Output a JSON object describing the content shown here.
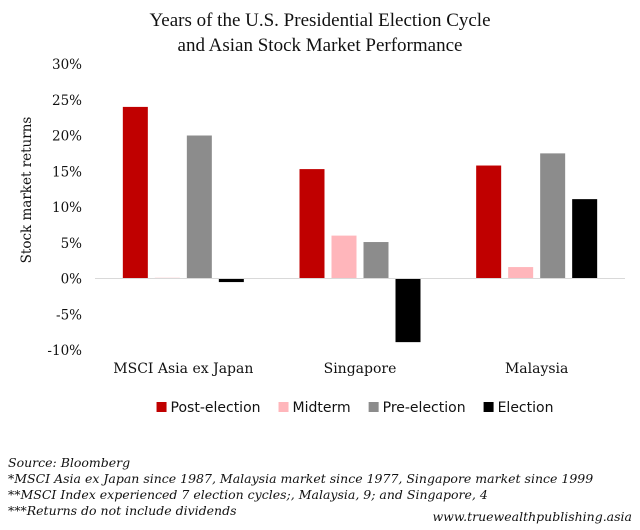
{
  "chart_data": {
    "type": "bar",
    "title": [
      "Years of the U.S. Presidential Election Cycle",
      "and Asian Stock Market Performance"
    ],
    "ylabel": "Stock market returns",
    "xlabel": "",
    "ylim": [
      -10,
      30
    ],
    "yticks": [
      30,
      25,
      20,
      15,
      10,
      5,
      0,
      -5,
      -10
    ],
    "ytick_labels": [
      "30%",
      "25%",
      "20%",
      "15%",
      "10%",
      "5%",
      "0%",
      "-5%",
      "-10%"
    ],
    "categories": [
      "MSCI Asia ex Japan",
      "Singapore",
      "Malaysia"
    ],
    "series": [
      {
        "name": "Post-election",
        "color": "#C00000",
        "values": [
          24.0,
          15.3,
          15.8
        ]
      },
      {
        "name": "Midterm",
        "color": "#FFB6BB",
        "values": [
          0.1,
          6.0,
          1.6
        ]
      },
      {
        "name": "Pre-election",
        "color": "#8C8C8C",
        "values": [
          20.0,
          5.1,
          17.5
        ]
      },
      {
        "name": "Election",
        "color": "#000000",
        "values": [
          -0.5,
          -8.9,
          11.1
        ]
      }
    ],
    "grid": false,
    "legend_position": "bottom"
  },
  "notes": {
    "source": "Source: Bloomberg",
    "note1": "*MSCI Asia ex Japan since 1987, Malaysia market since 1977, Singapore market since 1999",
    "note2": "**MSCI Index experienced 7 election cycles;, Malaysia, 9; and Singapore, 4",
    "note3": "***Returns do not include dividends",
    "website": "www.truewealthpublishing.asia"
  }
}
